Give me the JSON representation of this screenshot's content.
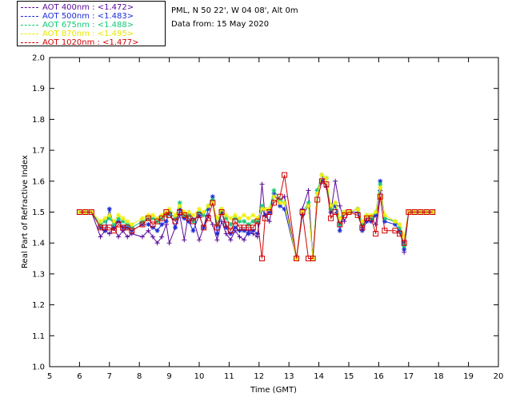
{
  "header": {
    "site": "PML, N 50 22', W 04 08', Alt 0m",
    "date": "Data from: 15 May 2020"
  },
  "chart_data": {
    "type": "line",
    "title": "",
    "xlabel": "Time (GMT)",
    "ylabel": "Real Part of Refractive Index",
    "xlim": [
      5,
      20
    ],
    "ylim": [
      1.0,
      2.0
    ],
    "xticks": [
      5,
      6,
      7,
      8,
      9,
      10,
      11,
      12,
      13,
      14,
      15,
      16,
      17,
      18,
      19,
      20
    ],
    "yticks": [
      "1.0",
      "1.1",
      "1.2",
      "1.3",
      "1.4",
      "1.5",
      "1.6",
      "1.7",
      "1.8",
      "1.9",
      "2.0"
    ],
    "grid": false,
    "legend_position": "top-left",
    "series": [
      {
        "name": "AOT  400nm : <1.472>",
        "color": "#5a0a9a",
        "marker": "plus",
        "x": [
          6.0,
          6.2,
          6.4,
          6.7,
          6.85,
          7.0,
          7.15,
          7.3,
          7.45,
          7.6,
          7.75,
          8.1,
          8.3,
          8.45,
          8.6,
          8.75,
          8.9,
          9.0,
          9.2,
          9.35,
          9.5,
          9.65,
          9.8,
          10.0,
          10.15,
          10.3,
          10.45,
          10.6,
          10.75,
          10.9,
          11.05,
          11.2,
          11.35,
          11.5,
          11.65,
          11.8,
          11.95,
          12.1,
          12.2,
          12.35,
          12.5,
          12.7,
          12.85,
          13.25,
          13.45,
          13.65,
          13.8,
          13.95,
          14.1,
          14.25,
          14.4,
          14.55,
          14.7,
          14.85,
          15.0,
          15.3,
          15.45,
          15.6,
          15.75,
          15.9,
          16.05,
          16.2,
          16.55,
          16.7,
          16.85,
          17.0,
          17.2,
          17.4,
          17.6,
          17.8
        ],
        "y": [
          1.5,
          1.5,
          1.5,
          1.42,
          1.44,
          1.43,
          1.45,
          1.42,
          1.44,
          1.42,
          1.43,
          1.42,
          1.44,
          1.42,
          1.4,
          1.42,
          1.46,
          1.4,
          1.45,
          1.49,
          1.41,
          1.5,
          1.48,
          1.41,
          1.45,
          1.49,
          1.46,
          1.41,
          1.47,
          1.43,
          1.41,
          1.44,
          1.42,
          1.41,
          1.44,
          1.43,
          1.42,
          1.59,
          1.49,
          1.47,
          1.55,
          1.54,
          1.55,
          1.35,
          1.51,
          1.57,
          1.35,
          1.56,
          1.62,
          1.58,
          1.5,
          1.6,
          1.52,
          1.47,
          1.5,
          1.5,
          1.45,
          1.48,
          1.48,
          1.46,
          1.57,
          1.48,
          1.47,
          1.46,
          1.37,
          1.5,
          1.5,
          1.5,
          1.5,
          1.5
        ]
      },
      {
        "name": "AOT  500nm : <1.483>",
        "color": "#1a2ad6",
        "marker": "asterisk",
        "x": [
          6.0,
          6.2,
          6.4,
          6.7,
          6.85,
          7.0,
          7.15,
          7.3,
          7.45,
          7.6,
          7.75,
          8.1,
          8.3,
          8.45,
          8.6,
          8.75,
          8.9,
          9.0,
          9.2,
          9.35,
          9.5,
          9.65,
          9.8,
          10.0,
          10.15,
          10.3,
          10.45,
          10.6,
          10.75,
          10.9,
          11.05,
          11.2,
          11.35,
          11.5,
          11.65,
          11.8,
          11.95,
          12.1,
          12.2,
          12.35,
          12.5,
          12.7,
          12.85,
          13.25,
          13.45,
          13.65,
          13.8,
          13.95,
          14.1,
          14.25,
          14.4,
          14.55,
          14.7,
          14.85,
          15.0,
          15.3,
          15.45,
          15.6,
          15.75,
          15.9,
          16.05,
          16.2,
          16.55,
          16.7,
          16.85,
          17.0,
          17.2,
          17.4,
          17.6,
          17.8
        ],
        "y": [
          1.5,
          1.5,
          1.5,
          1.45,
          1.44,
          1.51,
          1.45,
          1.47,
          1.45,
          1.45,
          1.44,
          1.46,
          1.46,
          1.45,
          1.44,
          1.46,
          1.47,
          1.5,
          1.45,
          1.51,
          1.48,
          1.47,
          1.44,
          1.49,
          1.45,
          1.51,
          1.55,
          1.43,
          1.5,
          1.45,
          1.43,
          1.45,
          1.44,
          1.44,
          1.43,
          1.44,
          1.43,
          1.51,
          1.49,
          1.5,
          1.56,
          1.52,
          1.51,
          1.35,
          1.49,
          1.52,
          1.35,
          1.57,
          1.6,
          1.61,
          1.5,
          1.52,
          1.44,
          1.5,
          1.5,
          1.51,
          1.44,
          1.47,
          1.47,
          1.49,
          1.6,
          1.47,
          1.46,
          1.44,
          1.38,
          1.5,
          1.5,
          1.5,
          1.5,
          1.5
        ]
      },
      {
        "name": "AOT  675nm : <1.488>",
        "color": "#14c878",
        "marker": "asterisk",
        "x": [
          6.0,
          6.2,
          6.4,
          6.7,
          6.85,
          7.0,
          7.15,
          7.3,
          7.45,
          7.6,
          7.75,
          8.1,
          8.3,
          8.45,
          8.6,
          8.75,
          8.9,
          9.0,
          9.2,
          9.35,
          9.5,
          9.65,
          9.8,
          10.0,
          10.15,
          10.3,
          10.45,
          10.6,
          10.75,
          10.9,
          11.05,
          11.2,
          11.35,
          11.5,
          11.65,
          11.8,
          11.95,
          12.1,
          12.2,
          12.35,
          12.5,
          12.7,
          12.85,
          13.25,
          13.45,
          13.65,
          13.8,
          13.95,
          14.1,
          14.25,
          14.4,
          14.55,
          14.7,
          14.85,
          15.0,
          15.3,
          15.45,
          15.6,
          15.75,
          15.9,
          16.05,
          16.2,
          16.55,
          16.7,
          16.85,
          17.0,
          17.2,
          17.4,
          17.6,
          17.8
        ],
        "y": [
          1.5,
          1.5,
          1.5,
          1.46,
          1.47,
          1.48,
          1.46,
          1.48,
          1.47,
          1.46,
          1.45,
          1.47,
          1.48,
          1.48,
          1.47,
          1.48,
          1.49,
          1.5,
          1.48,
          1.53,
          1.49,
          1.49,
          1.47,
          1.5,
          1.49,
          1.52,
          1.54,
          1.46,
          1.51,
          1.48,
          1.46,
          1.48,
          1.47,
          1.47,
          1.46,
          1.47,
          1.47,
          1.52,
          1.51,
          1.51,
          1.57,
          1.54,
          1.53,
          1.35,
          1.5,
          1.53,
          1.35,
          1.57,
          1.62,
          1.61,
          1.51,
          1.53,
          1.46,
          1.5,
          1.5,
          1.51,
          1.46,
          1.49,
          1.48,
          1.5,
          1.59,
          1.48,
          1.47,
          1.45,
          1.39,
          1.5,
          1.5,
          1.5,
          1.5,
          1.5
        ]
      },
      {
        "name": "AOT  870nm : <1.495>",
        "color": "#f0f000",
        "marker": "asterisk",
        "x": [
          6.0,
          6.2,
          6.4,
          6.7,
          6.85,
          7.0,
          7.15,
          7.3,
          7.45,
          7.6,
          7.75,
          8.1,
          8.3,
          8.45,
          8.6,
          8.75,
          8.9,
          9.0,
          9.2,
          9.35,
          9.5,
          9.65,
          9.8,
          10.0,
          10.15,
          10.3,
          10.45,
          10.6,
          10.75,
          10.9,
          11.05,
          11.2,
          11.35,
          11.5,
          11.65,
          11.8,
          11.95,
          12.1,
          12.2,
          12.35,
          12.5,
          12.7,
          12.85,
          13.25,
          13.45,
          13.65,
          13.8,
          13.95,
          14.1,
          14.25,
          14.4,
          14.55,
          14.7,
          14.85,
          15.0,
          15.3,
          15.45,
          15.6,
          15.75,
          15.9,
          16.05,
          16.2,
          16.55,
          16.7,
          16.85,
          17.0,
          17.2,
          17.4,
          17.6,
          17.8
        ],
        "y": [
          1.5,
          1.5,
          1.5,
          1.47,
          1.48,
          1.49,
          1.47,
          1.49,
          1.48,
          1.47,
          1.46,
          1.48,
          1.49,
          1.49,
          1.48,
          1.49,
          1.5,
          1.51,
          1.49,
          1.52,
          1.5,
          1.5,
          1.49,
          1.51,
          1.5,
          1.52,
          1.53,
          1.48,
          1.51,
          1.49,
          1.48,
          1.49,
          1.48,
          1.49,
          1.48,
          1.49,
          1.48,
          1.51,
          1.51,
          1.51,
          1.55,
          1.53,
          1.53,
          1.35,
          1.5,
          1.52,
          1.35,
          1.56,
          1.62,
          1.61,
          1.52,
          1.53,
          1.48,
          1.5,
          1.5,
          1.51,
          1.47,
          1.49,
          1.49,
          1.5,
          1.58,
          1.49,
          1.47,
          1.46,
          1.42,
          1.5,
          1.5,
          1.5,
          1.5,
          1.5
        ]
      },
      {
        "name": "AOT 1020nm : <1.477>",
        "color": "#d20000",
        "marker": "square",
        "x": [
          6.0,
          6.2,
          6.4,
          6.7,
          6.85,
          7.0,
          7.15,
          7.3,
          7.45,
          7.6,
          7.75,
          8.1,
          8.3,
          8.45,
          8.6,
          8.75,
          8.9,
          9.0,
          9.2,
          9.35,
          9.5,
          9.65,
          9.8,
          10.0,
          10.15,
          10.3,
          10.45,
          10.6,
          10.75,
          10.9,
          11.05,
          11.2,
          11.35,
          11.5,
          11.65,
          11.8,
          11.95,
          12.1,
          12.2,
          12.35,
          12.5,
          12.7,
          12.85,
          13.25,
          13.45,
          13.65,
          13.8,
          13.95,
          14.1,
          14.25,
          14.4,
          14.55,
          14.7,
          14.85,
          15.0,
          15.3,
          15.45,
          15.6,
          15.75,
          15.9,
          16.05,
          16.2,
          16.55,
          16.7,
          16.85,
          17.0,
          17.2,
          17.4,
          17.6,
          17.8
        ],
        "y": [
          1.5,
          1.5,
          1.5,
          1.45,
          1.45,
          1.45,
          1.44,
          1.46,
          1.45,
          1.45,
          1.44,
          1.46,
          1.48,
          1.46,
          1.47,
          1.48,
          1.5,
          1.49,
          1.47,
          1.5,
          1.49,
          1.48,
          1.47,
          1.49,
          1.45,
          1.48,
          1.53,
          1.45,
          1.5,
          1.46,
          1.44,
          1.47,
          1.45,
          1.45,
          1.45,
          1.45,
          1.47,
          1.35,
          1.48,
          1.5,
          1.53,
          1.55,
          1.62,
          1.35,
          1.5,
          1.35,
          1.35,
          1.54,
          1.6,
          1.59,
          1.48,
          1.5,
          1.46,
          1.49,
          1.5,
          1.49,
          1.45,
          1.48,
          1.48,
          1.43,
          1.55,
          1.44,
          1.44,
          1.43,
          1.4,
          1.5,
          1.5,
          1.5,
          1.5,
          1.5
        ]
      }
    ]
  }
}
